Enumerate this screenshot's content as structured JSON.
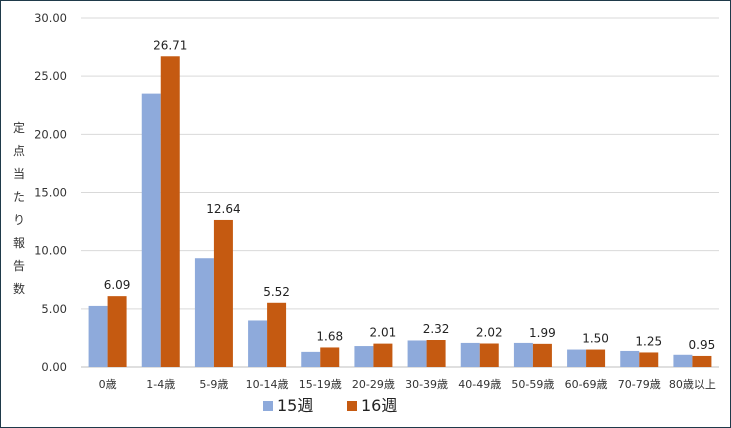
{
  "chart_data": {
    "type": "bar",
    "ylabel": "定点当たり報告数",
    "ylim": [
      0,
      30
    ],
    "yticks": [
      0,
      5,
      10,
      15,
      20,
      25,
      30
    ],
    "ytick_labels": [
      "0.00",
      "5.00",
      "10.00",
      "15.00",
      "20.00",
      "25.00",
      "30.00"
    ],
    "grid": true,
    "legend": "bottom",
    "categories": [
      "0歳",
      "1-4歳",
      "5-9歳",
      "10-14歳",
      "15-19歳",
      "20-29歳",
      "30-39歳",
      "40-49歳",
      "50-59歳",
      "60-69歳",
      "70-79歳",
      "80歳以上"
    ],
    "series": [
      {
        "name": "15週",
        "color": "#8eaadb",
        "values": [
          5.25,
          23.5,
          9.35,
          4.0,
          1.3,
          1.8,
          2.28,
          2.07,
          2.07,
          1.5,
          1.38,
          1.05
        ]
      },
      {
        "name": "16週",
        "color": "#c55a11",
        "values": [
          6.09,
          26.71,
          12.64,
          5.52,
          1.68,
          2.01,
          2.32,
          2.02,
          1.99,
          1.5,
          1.25,
          0.95
        ],
        "data_labels": [
          "6.09",
          "26.71",
          "12.64",
          "5.52",
          "1.68",
          "2.01",
          "2.32",
          "2.02",
          "1.99",
          "1.50",
          "1.25",
          "0.95"
        ]
      }
    ]
  }
}
